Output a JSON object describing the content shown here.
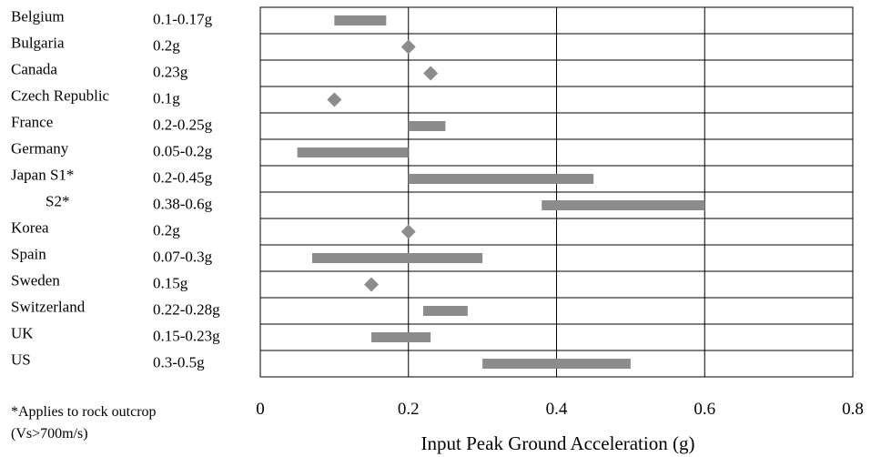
{
  "chart_data": {
    "type": "bar",
    "title": "",
    "xlabel": "Input Peak Ground Acceleration (g)",
    "ylabel": "",
    "xlim": [
      0,
      0.8
    ],
    "xticks": [
      "0",
      "0.2",
      "0.4",
      "0.6",
      "0.8"
    ],
    "grid": true,
    "categories": [
      {
        "country": "Belgium",
        "value_label": "0.1-0.17g",
        "kind": "range",
        "min": 0.1,
        "max": 0.17
      },
      {
        "country": "Bulgaria",
        "value_label": "0.2g",
        "kind": "point",
        "value": 0.2
      },
      {
        "country": "Canada",
        "value_label": "0.23g",
        "kind": "point",
        "value": 0.23
      },
      {
        "country": "Czech Republic",
        "value_label": "0.1g",
        "kind": "point",
        "value": 0.1
      },
      {
        "country": "France",
        "value_label": "0.2-0.25g",
        "kind": "range",
        "min": 0.2,
        "max": 0.25
      },
      {
        "country": "Germany",
        "value_label": "0.05-0.2g",
        "kind": "range",
        "min": 0.05,
        "max": 0.2
      },
      {
        "country": "Japan S1*",
        "value_label": "0.2-0.45g",
        "kind": "range",
        "min": 0.2,
        "max": 0.45
      },
      {
        "country": "S2*",
        "value_label": "0.38-0.6g",
        "kind": "range",
        "min": 0.38,
        "max": 0.6
      },
      {
        "country": "Korea",
        "value_label": "0.2g",
        "kind": "point",
        "value": 0.2
      },
      {
        "country": "Spain",
        "value_label": "0.07-0.3g",
        "kind": "range",
        "min": 0.07,
        "max": 0.3
      },
      {
        "country": "Sweden",
        "value_label": "0.15g",
        "kind": "point",
        "value": 0.15
      },
      {
        "country": "Switzerland",
        "value_label": "0.22-0.28g",
        "kind": "range",
        "min": 0.22,
        "max": 0.28
      },
      {
        "country": "UK",
        "value_label": "0.15-0.23g",
        "kind": "range",
        "min": 0.15,
        "max": 0.23
      },
      {
        "country": "US",
        "value_label": "0.3-0.5g",
        "kind": "range",
        "min": 0.3,
        "max": 0.5
      }
    ],
    "footnote": [
      "*Applies to rock outcrop",
      "(Vs>700m/s)"
    ],
    "colors": {
      "bar": "#8c8c8c",
      "marker": "#8c8c8c",
      "grid": "#000000"
    }
  }
}
